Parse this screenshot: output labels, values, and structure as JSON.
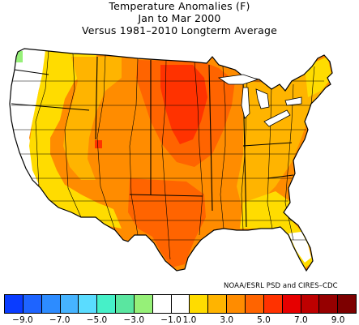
{
  "title": {
    "line1": "Temperature Anomalies (F)",
    "line2": "Jan to Mar 2000",
    "line3": "Versus 1981–2010 Longterm Average"
  },
  "credit": "NOAA/ESRL PSD and CIRES–CDC",
  "legend": {
    "colors": [
      "#0a3cff",
      "#1e64ff",
      "#2d8cff",
      "#46b4ff",
      "#5adcff",
      "#46f0c8",
      "#5ae6a0",
      "#96f078",
      "#ffffff",
      "#ffffff",
      "#ffdc00",
      "#ffb400",
      "#ff8c00",
      "#ff6400",
      "#ff3200",
      "#e60000",
      "#be0000",
      "#960000",
      "#7d0000"
    ],
    "tick_labels": [
      "−9.0",
      "−7.0",
      "−5.0",
      "−3.0",
      "−1.0",
      "1.0",
      "3.0",
      "5.0",
      "7.0",
      "9.0"
    ],
    "tick_values": [
      -9,
      -7,
      -5,
      -3,
      -1,
      1,
      3,
      5,
      7,
      9
    ]
  },
  "map": {
    "region": "Contiguous United States (climate divisions)",
    "anomaly_colors": {
      "near_zero": "#ffffff",
      "plus_1_3": "#ffdc00",
      "plus_3_5": "#ffb400",
      "plus_5_7": "#ff8c00",
      "plus_7_9": "#ff6400",
      "plus_9_11": "#ff3200",
      "minus_7_5": "#96f078"
    }
  }
}
